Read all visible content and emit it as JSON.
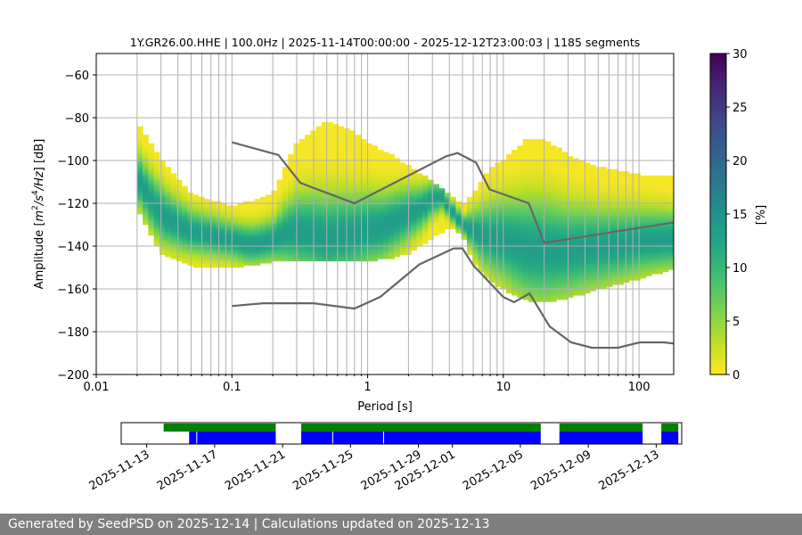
{
  "chart_data": {
    "type": "heatmap",
    "title": "1Y.GR26.00.HHE | 100.0Hz | 2025-11-14T00:00:00 - 2025-12-12T23:00:03 | 1185 segments",
    "xlabel": "Period [s]",
    "ylabel_main": "Amplitude [",
    "ylabel_sup": "4",
    "ylabel_unit1": "m",
    "ylabel_unit2": "/s",
    "ylabel_unit3": "/Hz",
    "ylabel_sq": "2",
    "ylabel_tail": "] [dB]",
    "x_scale": "log",
    "xlim": [
      0.01,
      180
    ],
    "ylim": [
      -200,
      -50
    ],
    "x_ticks": [
      {
        "value": 0.01,
        "label": "0.01"
      },
      {
        "value": 0.1,
        "label": "0.1"
      },
      {
        "value": 1,
        "label": "1"
      },
      {
        "value": 10,
        "label": "10"
      },
      {
        "value": 100,
        "label": "100"
      }
    ],
    "y_ticks": [
      {
        "value": -60,
        "label": "−60"
      },
      {
        "value": -80,
        "label": "−80"
      },
      {
        "value": -100,
        "label": "−100"
      },
      {
        "value": -120,
        "label": "−120"
      },
      {
        "value": -140,
        "label": "−140"
      },
      {
        "value": -160,
        "label": "−160"
      },
      {
        "value": -180,
        "label": "−180"
      },
      {
        "value": -200,
        "label": "−200"
      }
    ],
    "grid": true,
    "colorbar": {
      "label": "[%]",
      "range": [
        0,
        30
      ],
      "ticks": [
        {
          "value": 0,
          "label": "0"
        },
        {
          "value": 5,
          "label": "5"
        },
        {
          "value": 10,
          "label": "10"
        },
        {
          "value": 15,
          "label": "15"
        },
        {
          "value": 20,
          "label": "20"
        },
        {
          "value": 25,
          "label": "25"
        },
        {
          "value": 30,
          "label": "30"
        }
      ],
      "colormap": "viridis_r"
    },
    "psd_mode": {
      "periods": [
        0.02,
        0.025,
        0.03,
        0.04,
        0.05,
        0.07,
        0.1,
        0.13,
        0.15,
        0.2,
        0.25,
        0.3,
        0.4,
        0.5,
        0.6,
        0.8,
        1,
        1.3,
        1.6,
        2,
        2.5,
        3,
        3.5,
        4,
        5,
        6,
        7,
        8,
        10,
        12,
        15,
        20,
        30,
        40,
        60,
        80,
        100,
        150,
        180
      ],
      "db": [
        -108,
        -118,
        -125,
        -130,
        -133,
        -135,
        -137,
        -139,
        -139,
        -137,
        -134,
        -133,
        -134,
        -136,
        -135,
        -134,
        -132,
        -131,
        -128,
        -125,
        -122,
        -118,
        -117,
        -122,
        -130,
        -133,
        -135,
        -136,
        -137,
        -139,
        -141,
        -142,
        -142,
        -141,
        -140,
        -139,
        -138,
        -137,
        -137
      ]
    },
    "psd_upper_envelope": {
      "periods": [
        0.02,
        0.03,
        0.05,
        0.1,
        0.2,
        0.3,
        0.5,
        0.7,
        1,
        1.5,
        2,
        3,
        4,
        5,
        6,
        8,
        10,
        15,
        20,
        30,
        50,
        100,
        180
      ],
      "db": [
        -83,
        -100,
        -116,
        -122,
        -116,
        -92,
        -82,
        -85,
        -92,
        -98,
        -103,
        -110,
        -116,
        -121,
        -116,
        -104,
        -100,
        -90,
        -90,
        -98,
        -103,
        -107,
        -108
      ]
    },
    "psd_lower_envelope": {
      "periods": [
        0.02,
        0.03,
        0.05,
        0.1,
        0.2,
        0.3,
        0.5,
        0.7,
        1,
        1.5,
        2,
        3,
        4,
        5,
        6,
        8,
        10,
        15,
        20,
        30,
        50,
        100,
        180
      ],
      "db": [
        -122,
        -143,
        -149,
        -150,
        -147,
        -147,
        -147,
        -146,
        -147,
        -145,
        -143,
        -136,
        -131,
        -134,
        -148,
        -156,
        -160,
        -165,
        -166,
        -164,
        -160,
        -155,
        -150
      ]
    },
    "high_noise_model": {
      "periods": [
        0.1,
        0.22,
        0.32,
        0.8,
        3.8,
        4.6,
        6.3,
        7.9,
        15.4,
        20,
        354.8
      ],
      "db": [
        -91.5,
        -97.4,
        -110.5,
        -120,
        -98,
        -96.5,
        -101,
        -113.5,
        -120,
        -138.5,
        -126
      ]
    },
    "low_noise_model": {
      "periods": [
        0.1,
        0.17,
        0.4,
        0.8,
        1.24,
        2.4,
        4.3,
        5,
        6,
        10,
        12,
        15.6,
        21.9,
        31.6,
        45,
        70,
        101,
        154,
        328
      ],
      "db": [
        -168,
        -166.7,
        -166.7,
        -169.2,
        -163.7,
        -148.6,
        -141.1,
        -141.1,
        -149,
        -163.8,
        -166.2,
        -162.1,
        -177.5,
        -185,
        -187.5,
        -187.5,
        -185,
        -185,
        -187.5
      ]
    },
    "availability": {
      "tick_labels": [
        "2025-11-13",
        "2025-11-17",
        "2025-11-21",
        "2025-11-25",
        "2025-11-29",
        "2025-12-01",
        "2025-12-05",
        "2025-12-09",
        "2025-12-13"
      ],
      "tick_days": [
        0,
        4,
        8,
        12,
        16,
        18,
        22,
        26,
        30
      ],
      "range_days": [
        -1.5,
        31.5
      ],
      "data_segments": [
        [
          1.0,
          7.6
        ],
        [
          9.1,
          23.2
        ],
        [
          24.3,
          29.2
        ],
        [
          30.3,
          31.3
        ]
      ],
      "used_segments": [
        [
          2.5,
          7.6
        ],
        [
          9.1,
          23.2
        ],
        [
          24.3,
          29.2
        ],
        [
          30.3,
          31.3
        ]
      ],
      "used_gaps": [
        2.95,
        10.95,
        13.95
      ]
    }
  },
  "footer": {
    "text": "Generated by SeedPSD on 2025-12-14 | Calculations updated on 2025-12-13"
  }
}
